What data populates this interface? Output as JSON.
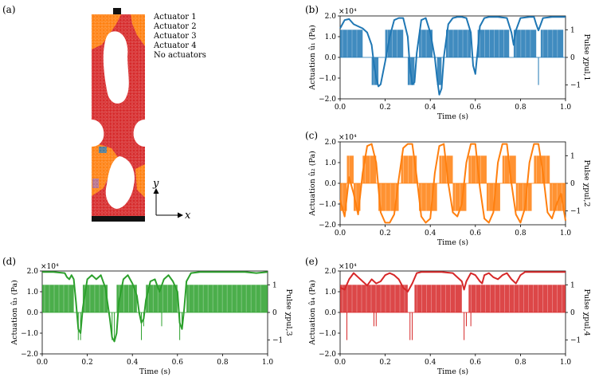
{
  "panels": [
    {
      "id": "a",
      "label": "(a)"
    },
    {
      "id": "b",
      "label": "(b)"
    },
    {
      "id": "c",
      "label": "(c)"
    },
    {
      "id": "d",
      "label": "(d)"
    },
    {
      "id": "e",
      "label": "(e)"
    }
  ],
  "legend": {
    "entries": [
      {
        "label": "Actuator 1",
        "color": "#1f77b4"
      },
      {
        "label": "Actuator 2",
        "color": "#ff7f0e"
      },
      {
        "label": "Actuator 3",
        "color": "#2ca02c"
      },
      {
        "label": "Actuator 4",
        "color": "#d62728"
      },
      {
        "label": "No actuators",
        "color": "#9467bd"
      }
    ]
  },
  "axes_arrows": {
    "y_label": "y",
    "x_label": "x"
  },
  "chart_data": [
    {
      "panel": "b",
      "type": "line",
      "color": "#1f77b4",
      "xlabel": "Time (s)",
      "ylabel_left": "Actuation û₁ (Pa)",
      "ylabel_right": "Pulse χpul,1",
      "offset_text": "×10⁴",
      "xlim": [
        0,
        1
      ],
      "ylim_left": [
        -2,
        2
      ],
      "ylim_right": [
        -1.5,
        1.5
      ],
      "x_ticks": [
        "0.0",
        "0.2",
        "0.4",
        "0.6",
        "0.8",
        "1.0"
      ],
      "y_ticks_left": [
        "−2.0",
        "−1.0",
        "0.0",
        "1.0",
        "2.0"
      ],
      "y_ticks_right": [
        "−1",
        "0",
        "1"
      ],
      "curve_x": [
        0,
        0.02,
        0.04,
        0.06,
        0.08,
        0.1,
        0.12,
        0.14,
        0.15,
        0.16,
        0.17,
        0.18,
        0.2,
        0.22,
        0.24,
        0.26,
        0.28,
        0.3,
        0.31,
        0.32,
        0.33,
        0.34,
        0.36,
        0.38,
        0.4,
        0.42,
        0.43,
        0.44,
        0.45,
        0.46,
        0.48,
        0.5,
        0.52,
        0.54,
        0.56,
        0.58,
        0.59,
        0.6,
        0.61,
        0.62,
        0.64,
        0.66,
        0.7,
        0.74,
        0.76,
        0.77,
        0.78,
        0.8,
        0.84,
        0.86,
        0.87,
        0.88,
        0.89,
        0.9,
        0.94,
        1.0
      ],
      "curve_y": [
        1.4,
        1.8,
        1.85,
        1.6,
        1.5,
        1.4,
        1.2,
        0.6,
        -0.3,
        -1.0,
        -1.4,
        -1.3,
        -0.2,
        1.0,
        1.8,
        1.9,
        1.9,
        1.0,
        -0.5,
        -1.3,
        -1.2,
        0.2,
        1.8,
        1.9,
        1.2,
        0.0,
        -1.0,
        -1.8,
        -1.5,
        0.0,
        1.6,
        1.9,
        1.95,
        1.95,
        1.9,
        1.2,
        -0.4,
        -0.8,
        0.3,
        1.5,
        1.9,
        1.95,
        1.95,
        1.9,
        1.2,
        0.6,
        1.3,
        1.9,
        1.95,
        1.95,
        1.6,
        1.3,
        1.6,
        1.9,
        1.95,
        1.95
      ],
      "pulse_segments": [
        [
          0.0,
          0.1,
          1
        ],
        [
          0.14,
          0.17,
          -1
        ],
        [
          0.2,
          0.28,
          1
        ],
        [
          0.3,
          0.33,
          -1
        ],
        [
          0.35,
          0.41,
          1
        ],
        [
          0.43,
          0.45,
          -1
        ],
        [
          0.47,
          0.58,
          1
        ],
        [
          0.61,
          0.75,
          1
        ],
        [
          0.77,
          0.87,
          1
        ],
        [
          0.89,
          0.99,
          1
        ]
      ],
      "pulse_spikes": [
        [
          0.88,
          -1
        ]
      ]
    },
    {
      "panel": "c",
      "type": "line",
      "color": "#ff7f0e",
      "xlabel": "Time (s)",
      "ylabel_left": "Actuation û₂ (Pa)",
      "ylabel_right": "Pulse χpul,2",
      "offset_text": "×10⁴",
      "xlim": [
        0,
        1
      ],
      "ylim_left": [
        -2,
        2
      ],
      "ylim_right": [
        -1.5,
        1.5
      ],
      "x_ticks": [
        "0.0",
        "0.2",
        "0.4",
        "0.6",
        "0.8",
        "1.0"
      ],
      "y_ticks_left": [
        "−2.0",
        "−1.0",
        "0.0",
        "1.0",
        "2.0"
      ],
      "y_ticks_right": [
        "−1",
        "0",
        "1"
      ],
      "curve_x": [
        0,
        0.02,
        0.04,
        0.06,
        0.08,
        0.1,
        0.12,
        0.14,
        0.16,
        0.18,
        0.2,
        0.22,
        0.24,
        0.26,
        0.28,
        0.3,
        0.32,
        0.34,
        0.36,
        0.38,
        0.4,
        0.42,
        0.44,
        0.46,
        0.48,
        0.5,
        0.52,
        0.54,
        0.56,
        0.58,
        0.6,
        0.62,
        0.64,
        0.66,
        0.68,
        0.7,
        0.72,
        0.74,
        0.76,
        0.78,
        0.8,
        0.82,
        0.84,
        0.86,
        0.88,
        0.9,
        0.92,
        0.94,
        0.96,
        0.98,
        1.0
      ],
      "curve_y": [
        -0.8,
        -1.6,
        0.3,
        -0.5,
        -1.5,
        0.5,
        1.8,
        1.9,
        1.0,
        -1.4,
        -1.9,
        -1.9,
        -1.5,
        0.2,
        1.7,
        1.9,
        1.9,
        0.3,
        -1.6,
        -1.9,
        -1.7,
        0.5,
        1.8,
        1.9,
        0.0,
        -1.4,
        -1.6,
        -1.0,
        1.0,
        1.9,
        1.9,
        -0.2,
        -1.7,
        -1.9,
        -1.4,
        1.0,
        1.9,
        1.9,
        0.0,
        -1.5,
        -1.9,
        -1.2,
        1.0,
        1.9,
        1.9,
        0.5,
        -1.4,
        -1.7,
        -1.0,
        -0.5,
        -1.8
      ],
      "pulse_segments": [
        [
          0.0,
          0.03,
          -1
        ],
        [
          0.03,
          0.06,
          1
        ],
        [
          0.06,
          0.09,
          -1
        ],
        [
          0.1,
          0.16,
          1
        ],
        [
          0.17,
          0.26,
          -1
        ],
        [
          0.27,
          0.34,
          1
        ],
        [
          0.35,
          0.43,
          -1
        ],
        [
          0.44,
          0.5,
          1
        ],
        [
          0.5,
          0.56,
          -1
        ],
        [
          0.57,
          0.65,
          1
        ],
        [
          0.65,
          0.71,
          -1
        ],
        [
          0.72,
          0.78,
          1
        ],
        [
          0.78,
          0.85,
          -1
        ],
        [
          0.86,
          0.93,
          1
        ],
        [
          0.93,
          1.0,
          -1
        ]
      ],
      "pulse_spikes": []
    },
    {
      "panel": "d",
      "type": "line",
      "color": "#2ca02c",
      "xlabel": "Time (s)",
      "ylabel_left": "Actuation û₃ (Pa)",
      "ylabel_right": "Pulse χpul,3",
      "offset_text": "×10⁴",
      "xlim": [
        0,
        1
      ],
      "ylim_left": [
        -2,
        2
      ],
      "ylim_right": [
        -1.5,
        1.5
      ],
      "x_ticks": [
        "0.0",
        "0.2",
        "0.4",
        "0.6",
        "0.8",
        "1.0"
      ],
      "y_ticks_left": [
        "−2.0",
        "−1.0",
        "0.0",
        "1.0",
        "2.0"
      ],
      "y_ticks_right": [
        "−1",
        "0",
        "1"
      ],
      "curve_x": [
        0,
        0.05,
        0.1,
        0.11,
        0.12,
        0.13,
        0.14,
        0.15,
        0.16,
        0.17,
        0.18,
        0.2,
        0.22,
        0.24,
        0.26,
        0.28,
        0.3,
        0.31,
        0.32,
        0.33,
        0.34,
        0.36,
        0.38,
        0.4,
        0.42,
        0.43,
        0.44,
        0.45,
        0.46,
        0.48,
        0.5,
        0.51,
        0.52,
        0.53,
        0.54,
        0.56,
        0.58,
        0.6,
        0.61,
        0.62,
        0.63,
        0.64,
        0.66,
        0.7,
        0.8,
        0.9,
        0.95,
        1.0
      ],
      "curve_y": [
        1.95,
        1.95,
        1.9,
        1.7,
        1.6,
        1.8,
        1.6,
        0.5,
        -0.8,
        -1.0,
        0.2,
        1.6,
        1.8,
        1.6,
        1.8,
        1.2,
        -0.3,
        -1.2,
        -1.4,
        -1.0,
        0.5,
        1.6,
        1.8,
        1.4,
        0.8,
        0.0,
        -0.5,
        -0.3,
        0.6,
        1.5,
        1.6,
        1.3,
        1.0,
        1.3,
        1.6,
        1.8,
        1.5,
        1.0,
        -0.5,
        -0.8,
        0.2,
        1.5,
        1.9,
        1.95,
        1.95,
        1.95,
        1.9,
        1.95
      ],
      "pulse_segments": [
        [
          0.0,
          0.14,
          1
        ],
        [
          0.18,
          0.29,
          1
        ],
        [
          0.33,
          0.42,
          1
        ],
        [
          0.46,
          0.6,
          1
        ],
        [
          0.64,
          1.0,
          1
        ]
      ],
      "pulse_spikes": [
        [
          0.16,
          -1
        ],
        [
          0.17,
          -1
        ],
        [
          0.31,
          -1
        ],
        [
          0.32,
          -1
        ],
        [
          0.44,
          -1
        ],
        [
          0.45,
          -0.5
        ],
        [
          0.53,
          -0.5
        ],
        [
          0.61,
          -1
        ],
        [
          0.62,
          -0.5
        ]
      ]
    },
    {
      "panel": "e",
      "type": "line",
      "color": "#d62728",
      "xlabel": "Time (s)",
      "ylabel_left": "Actuation û₄ (Pa)",
      "ylabel_right": "Pulse χpul,4",
      "offset_text": "×10⁴",
      "xlim": [
        0,
        1
      ],
      "ylim_left": [
        -2,
        2
      ],
      "ylim_right": [
        -1.5,
        1.5
      ],
      "x_ticks": [
        "0.0",
        "0.2",
        "0.4",
        "0.6",
        "0.8",
        "1.0"
      ],
      "y_ticks_left": [
        "−2.0",
        "−1.0",
        "0.0",
        "1.0",
        "2.0"
      ],
      "y_ticks_right": [
        "−1",
        "0",
        "1"
      ],
      "curve_x": [
        0,
        0.02,
        0.04,
        0.06,
        0.08,
        0.1,
        0.12,
        0.14,
        0.16,
        0.18,
        0.2,
        0.22,
        0.24,
        0.26,
        0.28,
        0.3,
        0.32,
        0.34,
        0.36,
        0.38,
        0.4,
        0.45,
        0.5,
        0.54,
        0.55,
        0.56,
        0.58,
        0.6,
        0.62,
        0.63,
        0.64,
        0.66,
        0.68,
        0.7,
        0.72,
        0.74,
        0.76,
        0.78,
        0.8,
        0.82,
        0.84,
        0.9,
        1.0
      ],
      "curve_y": [
        1.2,
        1.1,
        1.6,
        1.9,
        1.7,
        1.5,
        1.3,
        1.6,
        1.4,
        1.5,
        1.8,
        1.9,
        1.8,
        1.6,
        1.2,
        1.0,
        1.4,
        1.9,
        1.95,
        1.95,
        1.95,
        1.95,
        1.9,
        1.5,
        1.1,
        1.5,
        1.9,
        1.8,
        1.5,
        1.4,
        1.8,
        1.9,
        1.7,
        1.6,
        1.8,
        1.9,
        1.6,
        1.4,
        1.8,
        1.95,
        1.95,
        1.95,
        1.95
      ],
      "pulse_segments": [
        [
          0.0,
          0.3,
          1
        ],
        [
          0.33,
          0.54,
          1
        ],
        [
          0.57,
          1.0,
          1
        ]
      ],
      "pulse_spikes": [
        [
          0.03,
          -1
        ],
        [
          0.15,
          -0.5
        ],
        [
          0.16,
          -0.5
        ],
        [
          0.31,
          -1
        ],
        [
          0.32,
          -1
        ],
        [
          0.55,
          -1
        ],
        [
          0.56,
          -0.5
        ],
        [
          0.58,
          -0.5
        ]
      ]
    }
  ]
}
